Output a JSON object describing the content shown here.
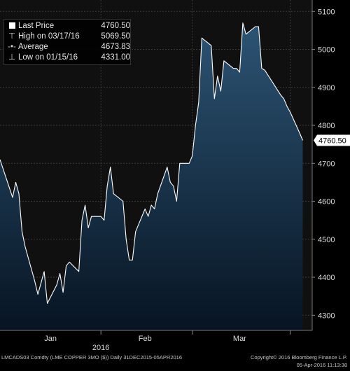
{
  "chart_data": {
    "type": "area",
    "xlabel": "2016",
    "x_tick_labels": [
      "Jan",
      "Feb",
      "Mar"
    ],
    "ylim": [
      4260,
      5130
    ],
    "y_ticks": [
      4300,
      4400,
      4500,
      4600,
      4700,
      4800,
      4900,
      5000,
      5100
    ],
    "dates": [
      "2015-12-31",
      "2016-01-04",
      "2016-01-05",
      "2016-01-06",
      "2016-01-07",
      "2016-01-08",
      "2016-01-11",
      "2016-01-12",
      "2016-01-13",
      "2016-01-14",
      "2016-01-15",
      "2016-01-18",
      "2016-01-19",
      "2016-01-20",
      "2016-01-21",
      "2016-01-22",
      "2016-01-25",
      "2016-01-26",
      "2016-01-27",
      "2016-01-28",
      "2016-01-29",
      "2016-02-01",
      "2016-02-02",
      "2016-02-03",
      "2016-02-04",
      "2016-02-05",
      "2016-02-08",
      "2016-02-09",
      "2016-02-10",
      "2016-02-11",
      "2016-02-12",
      "2016-02-15",
      "2016-02-16",
      "2016-02-17",
      "2016-02-18",
      "2016-02-19",
      "2016-02-22",
      "2016-02-23",
      "2016-02-24",
      "2016-02-25",
      "2016-02-26",
      "2016-02-29",
      "2016-03-01",
      "2016-03-02",
      "2016-03-03",
      "2016-03-04",
      "2016-03-07",
      "2016-03-08",
      "2016-03-09",
      "2016-03-10",
      "2016-03-11",
      "2016-03-14",
      "2016-03-15",
      "2016-03-16",
      "2016-03-17",
      "2016-03-18",
      "2016-03-21",
      "2016-03-22",
      "2016-03-23",
      "2016-03-24",
      "2016-03-29",
      "2016-03-30",
      "2016-03-31",
      "2016-04-01",
      "2016-04-04",
      "2016-04-05"
    ],
    "values": [
      4710,
      4610,
      4650,
      4620,
      4520,
      4480,
      4390,
      4355,
      4385,
      4415,
      4331,
      4380,
      4410,
      4360,
      4430,
      4440,
      4415,
      4550,
      4590,
      4530,
      4560,
      4560,
      4550,
      4640,
      4690,
      4620,
      4600,
      4500,
      4445,
      4445,
      4520,
      4580,
      4560,
      4590,
      4580,
      4620,
      4690,
      4650,
      4640,
      4600,
      4700,
      4700,
      4720,
      4800,
      4860,
      5030,
      5010,
      4870,
      4930,
      4890,
      4970,
      4950,
      4950,
      4940,
      5069.5,
      5040,
      5060,
      5060,
      4950,
      4945,
      4880,
      4870,
      4850,
      4835,
      4780,
      4760.5
    ],
    "last_value_label": "4760.50",
    "legend": [
      {
        "label": "Last Price",
        "value": "4760.50"
      },
      {
        "label": "High on 03/17/16",
        "value": "5069.50"
      },
      {
        "label": "Average",
        "value": "4673.83"
      },
      {
        "label": "Low on 01/15/16",
        "value": "4331.00"
      }
    ]
  },
  "footer": {
    "left": "LMCADS03 Comdty (LME COPPER   3MO ($))  Daily 31DEC2015-05APR2016",
    "right_1": "Copyright© 2016 Bloomberg Finance L.P.",
    "right_2": "05-Apr-2016 11:13:38"
  },
  "colors": {
    "background": "#000000",
    "plot_background": "#101010",
    "grid": "#3a3a3a",
    "line": "#ffffff",
    "fill_top": "#2c5474",
    "fill_bottom": "#071422",
    "text": "#dddddd"
  },
  "icons": {
    "last_price": "filled-square-icon",
    "high": "high-marker-icon",
    "average": "dash-dot-line-icon",
    "low": "low-marker-icon"
  }
}
